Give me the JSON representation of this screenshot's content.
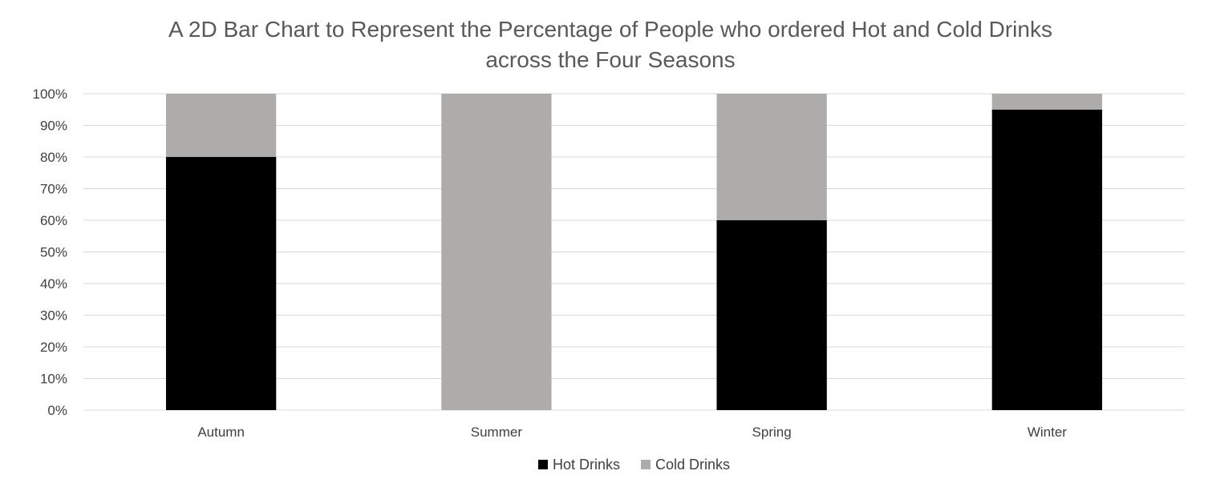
{
  "chart_data": {
    "type": "bar",
    "stacked": true,
    "title_lines": [
      "A 2D Bar Chart to Represent the Percentage of People who ordered Hot and Cold Drinks",
      "across the Four Seasons"
    ],
    "categories": [
      "Autumn",
      "Summer",
      "Spring",
      "Winter"
    ],
    "series": [
      {
        "name": "Hot Drinks",
        "values": [
          80,
          0,
          60,
          95
        ],
        "color": "#000000"
      },
      {
        "name": "Cold Drinks",
        "values": [
          20,
          100,
          40,
          5
        ],
        "color": "#aeabab"
      }
    ],
    "ylim": [
      0,
      100
    ],
    "yticks": [
      "0%",
      "10%",
      "20%",
      "30%",
      "40%",
      "50%",
      "60%",
      "70%",
      "80%",
      "90%",
      "100%"
    ],
    "grid": true,
    "legend_position": "bottom"
  }
}
